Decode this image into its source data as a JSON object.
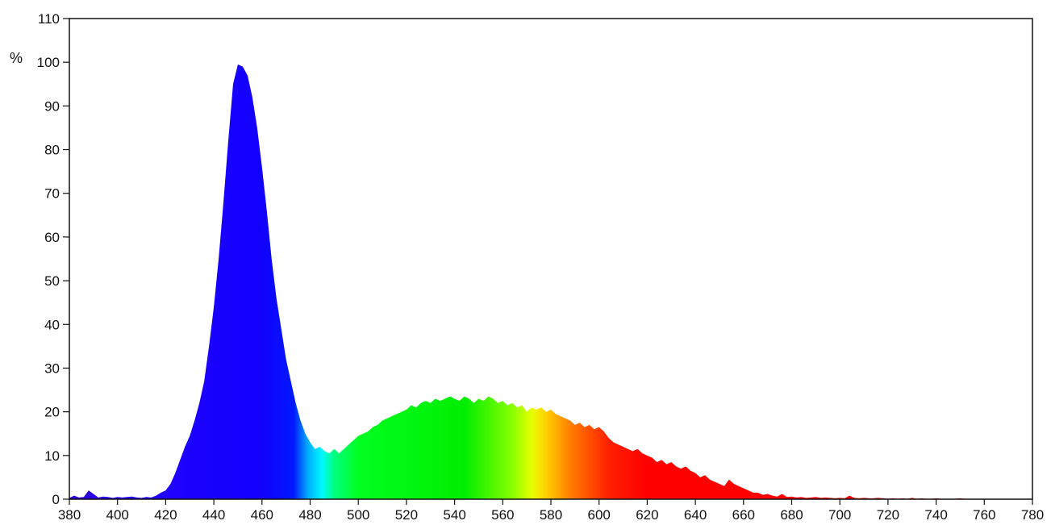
{
  "chart_data": {
    "type": "area",
    "title": "",
    "xlabel": "",
    "ylabel": "%",
    "xlim": [
      380,
      780
    ],
    "ylim": [
      0,
      110
    ],
    "x_ticks": [
      380,
      400,
      420,
      440,
      460,
      480,
      500,
      520,
      540,
      560,
      580,
      600,
      620,
      640,
      660,
      680,
      700,
      720,
      740,
      760,
      780
    ],
    "y_ticks": [
      0,
      10,
      20,
      30,
      40,
      50,
      60,
      70,
      80,
      90,
      100,
      110
    ],
    "grid": false,
    "fill": "visible-spectrum-gradient",
    "series": [
      {
        "x": [
          380,
          382,
          384,
          386,
          388,
          390,
          392,
          394,
          396,
          398,
          400,
          402,
          404,
          406,
          408,
          410,
          412,
          414,
          416,
          418,
          420,
          422,
          424,
          426,
          428,
          430,
          432,
          434,
          436,
          438,
          440,
          442,
          444,
          446,
          448,
          450,
          452,
          454,
          456,
          458,
          460,
          462,
          464,
          466,
          468,
          470,
          472,
          474,
          476,
          478,
          480,
          482,
          484,
          486,
          488,
          490,
          492,
          494,
          496,
          498,
          500,
          502,
          504,
          506,
          508,
          510,
          512,
          514,
          516,
          518,
          520,
          522,
          524,
          526,
          528,
          530,
          532,
          534,
          536,
          538,
          540,
          542,
          544,
          546,
          548,
          550,
          552,
          554,
          556,
          558,
          560,
          562,
          564,
          566,
          568,
          570,
          572,
          574,
          576,
          578,
          580,
          582,
          584,
          586,
          588,
          590,
          592,
          594,
          596,
          598,
          600,
          602,
          604,
          606,
          608,
          610,
          612,
          614,
          616,
          618,
          620,
          622,
          624,
          626,
          628,
          630,
          632,
          634,
          636,
          638,
          640,
          642,
          644,
          646,
          648,
          650,
          652,
          654,
          656,
          658,
          660,
          662,
          664,
          666,
          668,
          670,
          672,
          674,
          676,
          678,
          680,
          682,
          684,
          686,
          688,
          690,
          692,
          694,
          696,
          698,
          700,
          702,
          704,
          706,
          708,
          710,
          712,
          714,
          716,
          718,
          720,
          722,
          724,
          726,
          728,
          730,
          732,
          734,
          736,
          738,
          740,
          742,
          744,
          746,
          748,
          750,
          752,
          754,
          756,
          758,
          760,
          762,
          764,
          766,
          768,
          770,
          772,
          774,
          776,
          778,
          780
        ],
        "values": [
          0.3,
          0.8,
          0.4,
          0.5,
          2.0,
          1.2,
          0.4,
          0.6,
          0.5,
          0.3,
          0.5,
          0.4,
          0.5,
          0.6,
          0.4,
          0.3,
          0.5,
          0.4,
          0.8,
          1.5,
          2.0,
          3.5,
          6.0,
          9.0,
          12.0,
          14.5,
          18.0,
          22.0,
          27.0,
          35.0,
          44.0,
          55.0,
          68.0,
          82.0,
          95.0,
          99.5,
          99.0,
          97.0,
          92.0,
          85.0,
          76.0,
          66.0,
          55.0,
          46.0,
          39.0,
          32.0,
          27.0,
          22.0,
          18.0,
          15.0,
          13.0,
          11.5,
          12.0,
          11.0,
          10.5,
          11.5,
          10.5,
          11.5,
          12.5,
          13.5,
          14.5,
          15.0,
          15.5,
          16.5,
          17.0,
          18.0,
          18.5,
          19.0,
          19.5,
          20.0,
          20.5,
          21.5,
          21.0,
          22.0,
          22.5,
          22.0,
          23.0,
          22.5,
          23.0,
          23.5,
          23.0,
          22.5,
          23.5,
          23.0,
          22.0,
          23.0,
          22.5,
          23.5,
          23.0,
          22.0,
          22.5,
          21.5,
          22.0,
          21.0,
          21.5,
          20.0,
          21.0,
          20.5,
          21.0,
          20.0,
          20.5,
          19.5,
          19.0,
          18.5,
          18.0,
          17.0,
          17.5,
          16.5,
          17.0,
          16.0,
          16.5,
          15.5,
          14.0,
          13.0,
          12.5,
          12.0,
          11.5,
          11.0,
          11.5,
          10.5,
          10.0,
          9.5,
          8.5,
          9.0,
          8.0,
          8.5,
          7.5,
          7.0,
          7.5,
          6.5,
          6.0,
          5.0,
          5.5,
          4.5,
          4.0,
          3.5,
          3.0,
          4.5,
          3.5,
          3.0,
          2.5,
          2.0,
          1.5,
          1.5,
          1.0,
          1.2,
          0.8,
          0.6,
          1.2,
          0.5,
          0.6,
          0.4,
          0.5,
          0.3,
          0.4,
          0.5,
          0.3,
          0.4,
          0.3,
          0.2,
          0.3,
          0.2,
          0.8,
          0.3,
          0.2,
          0.3,
          0.2,
          0.2,
          0.3,
          0.2,
          0.1,
          0.2,
          0.1,
          0.2,
          0.1,
          0.3,
          0.1,
          0.2,
          0.1,
          0.1,
          0.2,
          0.1,
          0.1,
          0.1,
          0.1,
          0.2,
          0.1,
          0.1,
          0.1,
          0.1,
          0.1,
          0.1,
          0.1,
          0.1,
          0.1,
          0.1,
          0.1,
          0.1,
          0.1,
          0.1,
          0.1
        ]
      }
    ]
  }
}
